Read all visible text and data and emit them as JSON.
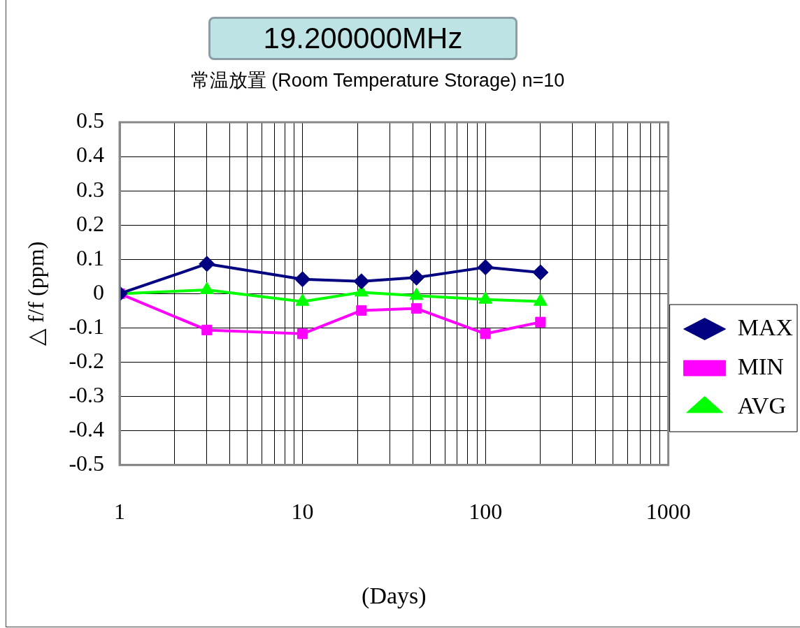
{
  "chart_data": {
    "type": "line",
    "title": "19.200000MHz",
    "subtitle": "常温放置 (Room Temperature Storage) n=10",
    "xlabel": "(Days)",
    "ylabel": "△ f/f (ppm)",
    "x": [
      1,
      3,
      10,
      21,
      42,
      100,
      200
    ],
    "series": [
      {
        "name": "MAX",
        "color": "#000080",
        "marker": "diamond",
        "values": [
          0,
          0.087,
          0.042,
          0.036,
          0.047,
          0.077,
          0.062
        ]
      },
      {
        "name": "MIN",
        "color": "#ff00ff",
        "marker": "square",
        "values": [
          0,
          -0.106,
          -0.117,
          -0.049,
          -0.043,
          -0.117,
          -0.083
        ]
      },
      {
        "name": "AVG",
        "color": "#00ff00",
        "marker": "triangle",
        "values": [
          0,
          0.011,
          -0.023,
          0.004,
          -0.006,
          -0.017,
          -0.023
        ]
      }
    ],
    "log": "x",
    "xlim": [
      1,
      1000
    ],
    "xticks": [
      1,
      {
        "value": 2,
        "label": null
      },
      {
        "value": 3,
        "label": null
      },
      {
        "value": 4,
        "label": null
      },
      {
        "value": 5,
        "label": null
      },
      {
        "value": 6,
        "label": null
      },
      {
        "value": 7,
        "label": null
      },
      {
        "value": 8,
        "label": null
      },
      {
        "value": 9,
        "label": null
      },
      10,
      {
        "value": 20,
        "label": null
      },
      {
        "value": 30,
        "label": null
      },
      {
        "value": 40,
        "label": null
      },
      {
        "value": 50,
        "label": null
      },
      {
        "value": 60,
        "label": null
      },
      {
        "value": 70,
        "label": null
      },
      {
        "value": 80,
        "label": null
      },
      {
        "value": 90,
        "label": null
      },
      100,
      {
        "value": 200,
        "label": null
      },
      {
        "value": 300,
        "label": null
      },
      {
        "value": 400,
        "label": null
      },
      {
        "value": 500,
        "label": null
      },
      {
        "value": 600,
        "label": null
      },
      {
        "value": 700,
        "label": null
      },
      {
        "value": 800,
        "label": null
      },
      {
        "value": 900,
        "label": null
      },
      1000
    ],
    "ylim": [
      -0.5,
      0.5
    ],
    "yticks": [
      -0.5,
      -0.4,
      -0.3,
      -0.2,
      -0.1,
      0,
      0.1,
      0.2,
      0.3,
      0.4,
      0.5
    ],
    "grid": true,
    "legend": "right"
  }
}
